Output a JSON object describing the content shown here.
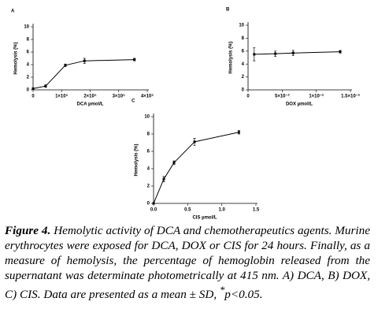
{
  "chart_data": [
    {
      "type": "line",
      "panel": "A",
      "ylabel": "Hemolysis (%)",
      "xlabel": "DCA µmol/L",
      "color": "#000000",
      "x": [
        0,
        44000,
        113000,
        180000,
        355000
      ],
      "values": [
        0.2,
        0.6,
        3.9,
        4.6,
        4.8
      ],
      "errors": [
        0.1,
        0.2,
        0.2,
        0.4,
        0.2
      ],
      "xlim": [
        0,
        400000
      ],
      "xticks": [
        0,
        {
          "value": 100000,
          "label": "1×10⁵"
        },
        {
          "value": 200000,
          "label": "2×10⁵"
        },
        {
          "value": 300000,
          "label": "3×10⁵"
        },
        {
          "value": 400000,
          "label": "4×10⁵"
        }
      ],
      "ylim": [
        0,
        10
      ],
      "yticks": [
        0,
        2,
        4,
        6,
        8,
        10
      ]
    },
    {
      "type": "line",
      "panel": "B",
      "ylabel": "Hemolysis (%)",
      "xlabel": "DOX µmol/L",
      "color": "#000000",
      "x": [
        0.0009,
        0.004,
        0.0066,
        0.0135
      ],
      "values": [
        5.5,
        5.6,
        5.7,
        5.9
      ],
      "errors": [
        1.0,
        0.4,
        0.4,
        0.2
      ],
      "xlim": [
        0,
        0.015
      ],
      "xticks": [
        {
          "value": 0,
          "label": "0"
        },
        {
          "value": 0.005,
          "label": "5×10⁻³"
        },
        {
          "value": 0.01,
          "label": "1×10⁻²"
        },
        {
          "value": 0.015,
          "label": "1.5×10⁻²"
        }
      ],
      "ylim": [
        0,
        10
      ],
      "yticks": [
        0,
        2,
        4,
        6,
        8,
        10
      ]
    },
    {
      "type": "line",
      "panel": "C",
      "ylabel": "Hemolysis (%)",
      "xlabel": "CIS µmol/L",
      "color": "#000000",
      "x": [
        0,
        0.15,
        0.3,
        0.6,
        1.25
      ],
      "values": [
        0,
        2.8,
        4.7,
        7.1,
        8.2
      ],
      "errors": [
        0,
        0.3,
        0.2,
        0.4,
        0.2
      ],
      "xlim": [
        0,
        1.5
      ],
      "xticks": [
        {
          "value": 0,
          "label": "0.0"
        },
        0.5,
        {
          "value": 1,
          "label": "1.0"
        },
        1.5
      ],
      "ylim": [
        0,
        10
      ],
      "yticks": [
        0,
        2,
        4,
        6,
        8,
        10
      ]
    }
  ],
  "caption": {
    "label": "Figure 4.",
    "text": " Hemolytic activity of DCA and chemotherapeutics agents. Murine erythrocytes were exposed for DCA, DOX or CIS for 24 hours. Finally, as a measure of hemolysis, the percentage of hemoglobin released from the supernatant was determinate photometrically at 415 nm. A) DCA, B) DOX, C) CIS. Data are presented as a mean ± SD, ",
    "sig": "*",
    "tail": "p<0.05."
  }
}
